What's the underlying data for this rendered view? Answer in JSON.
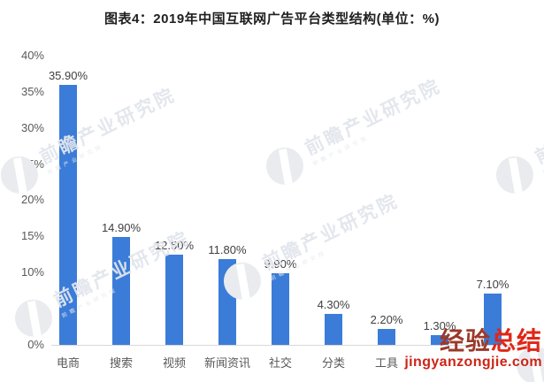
{
  "title": "图表4：2019年中国互联网广告平台类型结构(单位：%)",
  "chart_data": {
    "type": "bar",
    "title": "图表4：2019年中国互联网广告平台类型结构(单位：%)",
    "unit": "%",
    "categories": [
      "电商",
      "搜索",
      "视频",
      "新闻资讯",
      "社交",
      "分类",
      "工具",
      "",
      ""
    ],
    "values": [
      35.9,
      14.9,
      12.5,
      11.8,
      9.9,
      4.3,
      2.2,
      1.3,
      7.1
    ],
    "value_labels": [
      "35.90%",
      "14.90%",
      "12.50%",
      "11.80%",
      "9.90%",
      "4.30%",
      "2.20%",
      "1.30%",
      "7.10%"
    ],
    "yticks": [
      "0%",
      "5%",
      "10%",
      "15%",
      "20%",
      "25%",
      "30%",
      "35%",
      "40%"
    ],
    "ylim": [
      0,
      40
    ],
    "grid": false,
    "legend": "none",
    "bar_color": "#3b7cd9"
  },
  "colors": {
    "bar": "#3b7cd9",
    "axis_text": "#595959",
    "value_text": "#404040",
    "baseline": "#d9d9d9",
    "title_text": "#1f1f1f",
    "red_dark": "#9c392a",
    "red_bright": "#e02617",
    "red_url": "#cc2518"
  },
  "watermark_gray": {
    "text": "前瞻产业研究院"
  },
  "watermark_red": {
    "line1_part1": "经验",
    "line1_part2": "总结",
    "line2": "jingyanzongjie.com"
  }
}
